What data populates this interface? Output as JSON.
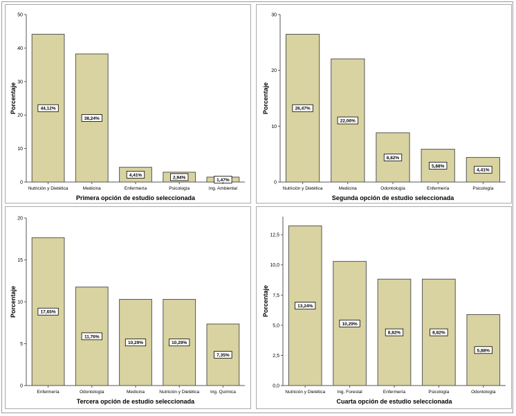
{
  "colors": {
    "bar_fill": "#d8d3a0",
    "bar_stroke": "#555555",
    "axis": "#555555"
  },
  "chart_data": [
    {
      "type": "bar",
      "title": "",
      "xlabel": "Primera opción de estudio seleccionada",
      "ylabel": "Porcentaje",
      "categories": [
        "Nutrición y Dietética",
        "Medicina",
        "Enfermería",
        "Psicología",
        "Ing. Ambiental"
      ],
      "values": [
        44.12,
        38.24,
        4.41,
        2.94,
        1.47
      ],
      "data_labels": [
        "44,12%",
        "38,24%",
        "4,41%",
        "2,94%",
        "1,47%"
      ],
      "yticks": [
        "0",
        "10",
        "20",
        "30",
        "40",
        "50"
      ],
      "ytick_values": [
        0,
        10,
        20,
        30,
        40,
        50
      ],
      "ylim": [
        0,
        50
      ],
      "grid": false
    },
    {
      "type": "bar",
      "title": "",
      "xlabel": "Segunda opción de estudio seleccionada",
      "ylabel": "Porcentaje",
      "categories": [
        "Nutrición y Dietética",
        "Medicina",
        "Odontología",
        "Enfermería",
        "Psicología"
      ],
      "values": [
        26.47,
        22.06,
        8.82,
        5.88,
        4.41
      ],
      "data_labels": [
        "26,47%",
        "22,06%",
        "8,82%",
        "5,88%",
        "4,41%"
      ],
      "yticks": [
        "0",
        "10",
        "20",
        "30"
      ],
      "ytick_values": [
        0,
        10,
        20,
        30
      ],
      "ylim": [
        0,
        30
      ],
      "grid": false
    },
    {
      "type": "bar",
      "title": "",
      "xlabel": "Tercera opción de estudio seleccionada",
      "ylabel": "Porcentaje",
      "categories": [
        "Enfermería",
        "Odontología",
        "Medicina",
        "Nutrición y Dietética",
        "Ing. Química"
      ],
      "values": [
        17.65,
        11.76,
        10.29,
        10.29,
        7.35
      ],
      "data_labels": [
        "17,65%",
        "11,76%",
        "10,29%",
        "10,29%",
        "7,35%"
      ],
      "yticks": [
        "0",
        "5",
        "10",
        "15",
        "20"
      ],
      "ytick_values": [
        0,
        5,
        10,
        15,
        20
      ],
      "ylim": [
        0,
        20
      ],
      "grid": false
    },
    {
      "type": "bar",
      "title": "",
      "xlabel": "Cuarta opción de estudio seleccionada",
      "ylabel": "Porcentaje",
      "categories": [
        "Nutrición y Dietética",
        "Ing. Forestal",
        "Enfermería",
        "Psicología",
        "Odontología"
      ],
      "values": [
        13.24,
        10.29,
        8.82,
        8.82,
        5.88
      ],
      "data_labels": [
        "13,24%",
        "10,29%",
        "8,82%",
        "8,82%",
        "5,88%"
      ],
      "yticks": [
        "0,0",
        "2,5",
        "5,0",
        "7,5",
        "10,0",
        "12,5"
      ],
      "ytick_values": [
        0,
        2.5,
        5,
        7.5,
        10,
        12.5
      ],
      "ylim": [
        0,
        14
      ],
      "grid": false
    }
  ]
}
